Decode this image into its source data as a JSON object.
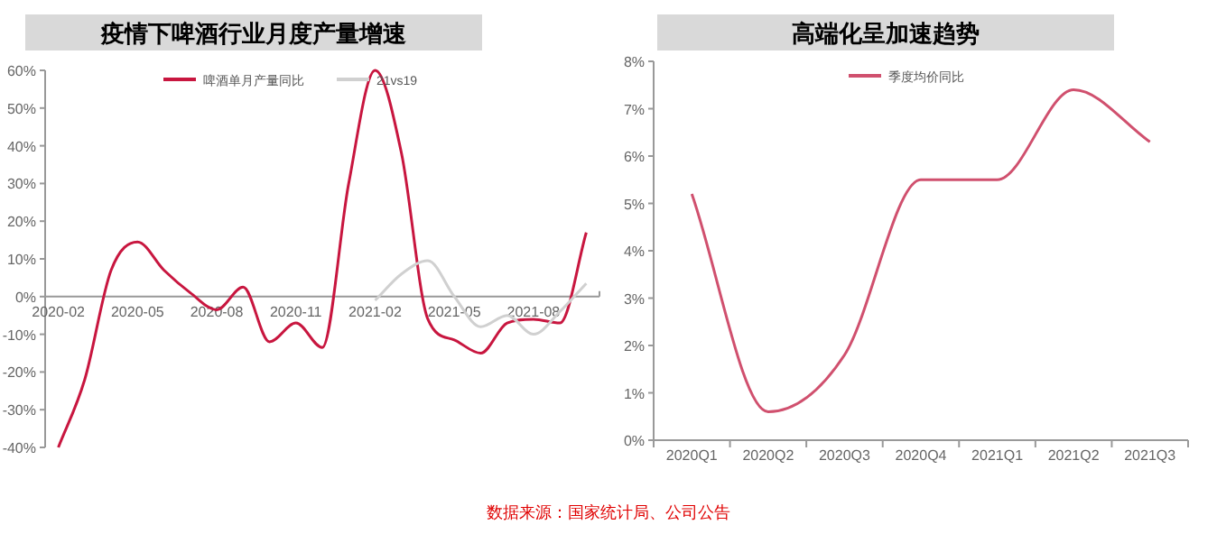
{
  "chart_data": [
    {
      "type": "line",
      "title": "疫情下啤酒行业月度产量增速",
      "categories": [
        "2020-02",
        null,
        null,
        "2020-05",
        null,
        null,
        "2020-08",
        null,
        null,
        "2020-11",
        null,
        null,
        "2021-02",
        null,
        null,
        "2021-05",
        null,
        null,
        "2021-08",
        null,
        null
      ],
      "series": [
        {
          "name": "啤酒单月产量同比",
          "color": "#c8163f",
          "values": [
            -40,
            -22,
            7,
            14.5,
            7,
            1,
            -3.5,
            2.5,
            -12,
            -7,
            -13.5,
            30,
            60,
            38,
            -6,
            -11.5,
            -15,
            -7,
            -6,
            -7,
            17
          ]
        },
        {
          "name": "21vs19",
          "color": "#d0d0d0",
          "values": [
            null,
            null,
            null,
            null,
            null,
            null,
            null,
            null,
            null,
            null,
            null,
            null,
            -1,
            6,
            9.5,
            0,
            -8,
            -5,
            -10,
            -4,
            3.5
          ]
        }
      ],
      "ylim": [
        -40,
        60
      ],
      "yticks": [
        {
          "value": -40,
          "label": "-40%"
        },
        {
          "value": -30,
          "label": "-30%"
        },
        {
          "value": -20,
          "label": "-20%"
        },
        {
          "value": -10,
          "label": "-10%"
        },
        {
          "value": 0,
          "label": "0%"
        },
        {
          "value": 10,
          "label": "10%"
        },
        {
          "value": 20,
          "label": "20%"
        },
        {
          "value": 30,
          "label": "30%"
        },
        {
          "value": 40,
          "label": "40%"
        },
        {
          "value": 50,
          "label": "50%"
        },
        {
          "value": 60,
          "label": "60%"
        }
      ],
      "legend": "top",
      "annotations": [
        "数据来源：国家统计局、公司公告"
      ]
    },
    {
      "type": "line",
      "title": "高端化呈加速趋势",
      "categories": [
        "2020Q1",
        "2020Q2",
        "2020Q3",
        "2020Q4",
        "2021Q1",
        "2021Q2",
        "2021Q3"
      ],
      "series": [
        {
          "name": "季度均价同比",
          "color": "#d0506e",
          "values": [
            5.2,
            0.6,
            1.8,
            5.5,
            5.5,
            7.4,
            6.3
          ]
        }
      ],
      "ylim": [
        0,
        8
      ],
      "yticks": [
        {
          "value": 0,
          "label": "0%"
        },
        {
          "value": 1,
          "label": "1%"
        },
        {
          "value": 2,
          "label": "2%"
        },
        {
          "value": 3,
          "label": "3%"
        },
        {
          "value": 4,
          "label": "4%"
        },
        {
          "value": 5,
          "label": "5%"
        },
        {
          "value": 6,
          "label": "6%"
        },
        {
          "value": 7,
          "label": "7%"
        },
        {
          "value": 8,
          "label": "8%"
        }
      ],
      "legend": "top"
    }
  ]
}
